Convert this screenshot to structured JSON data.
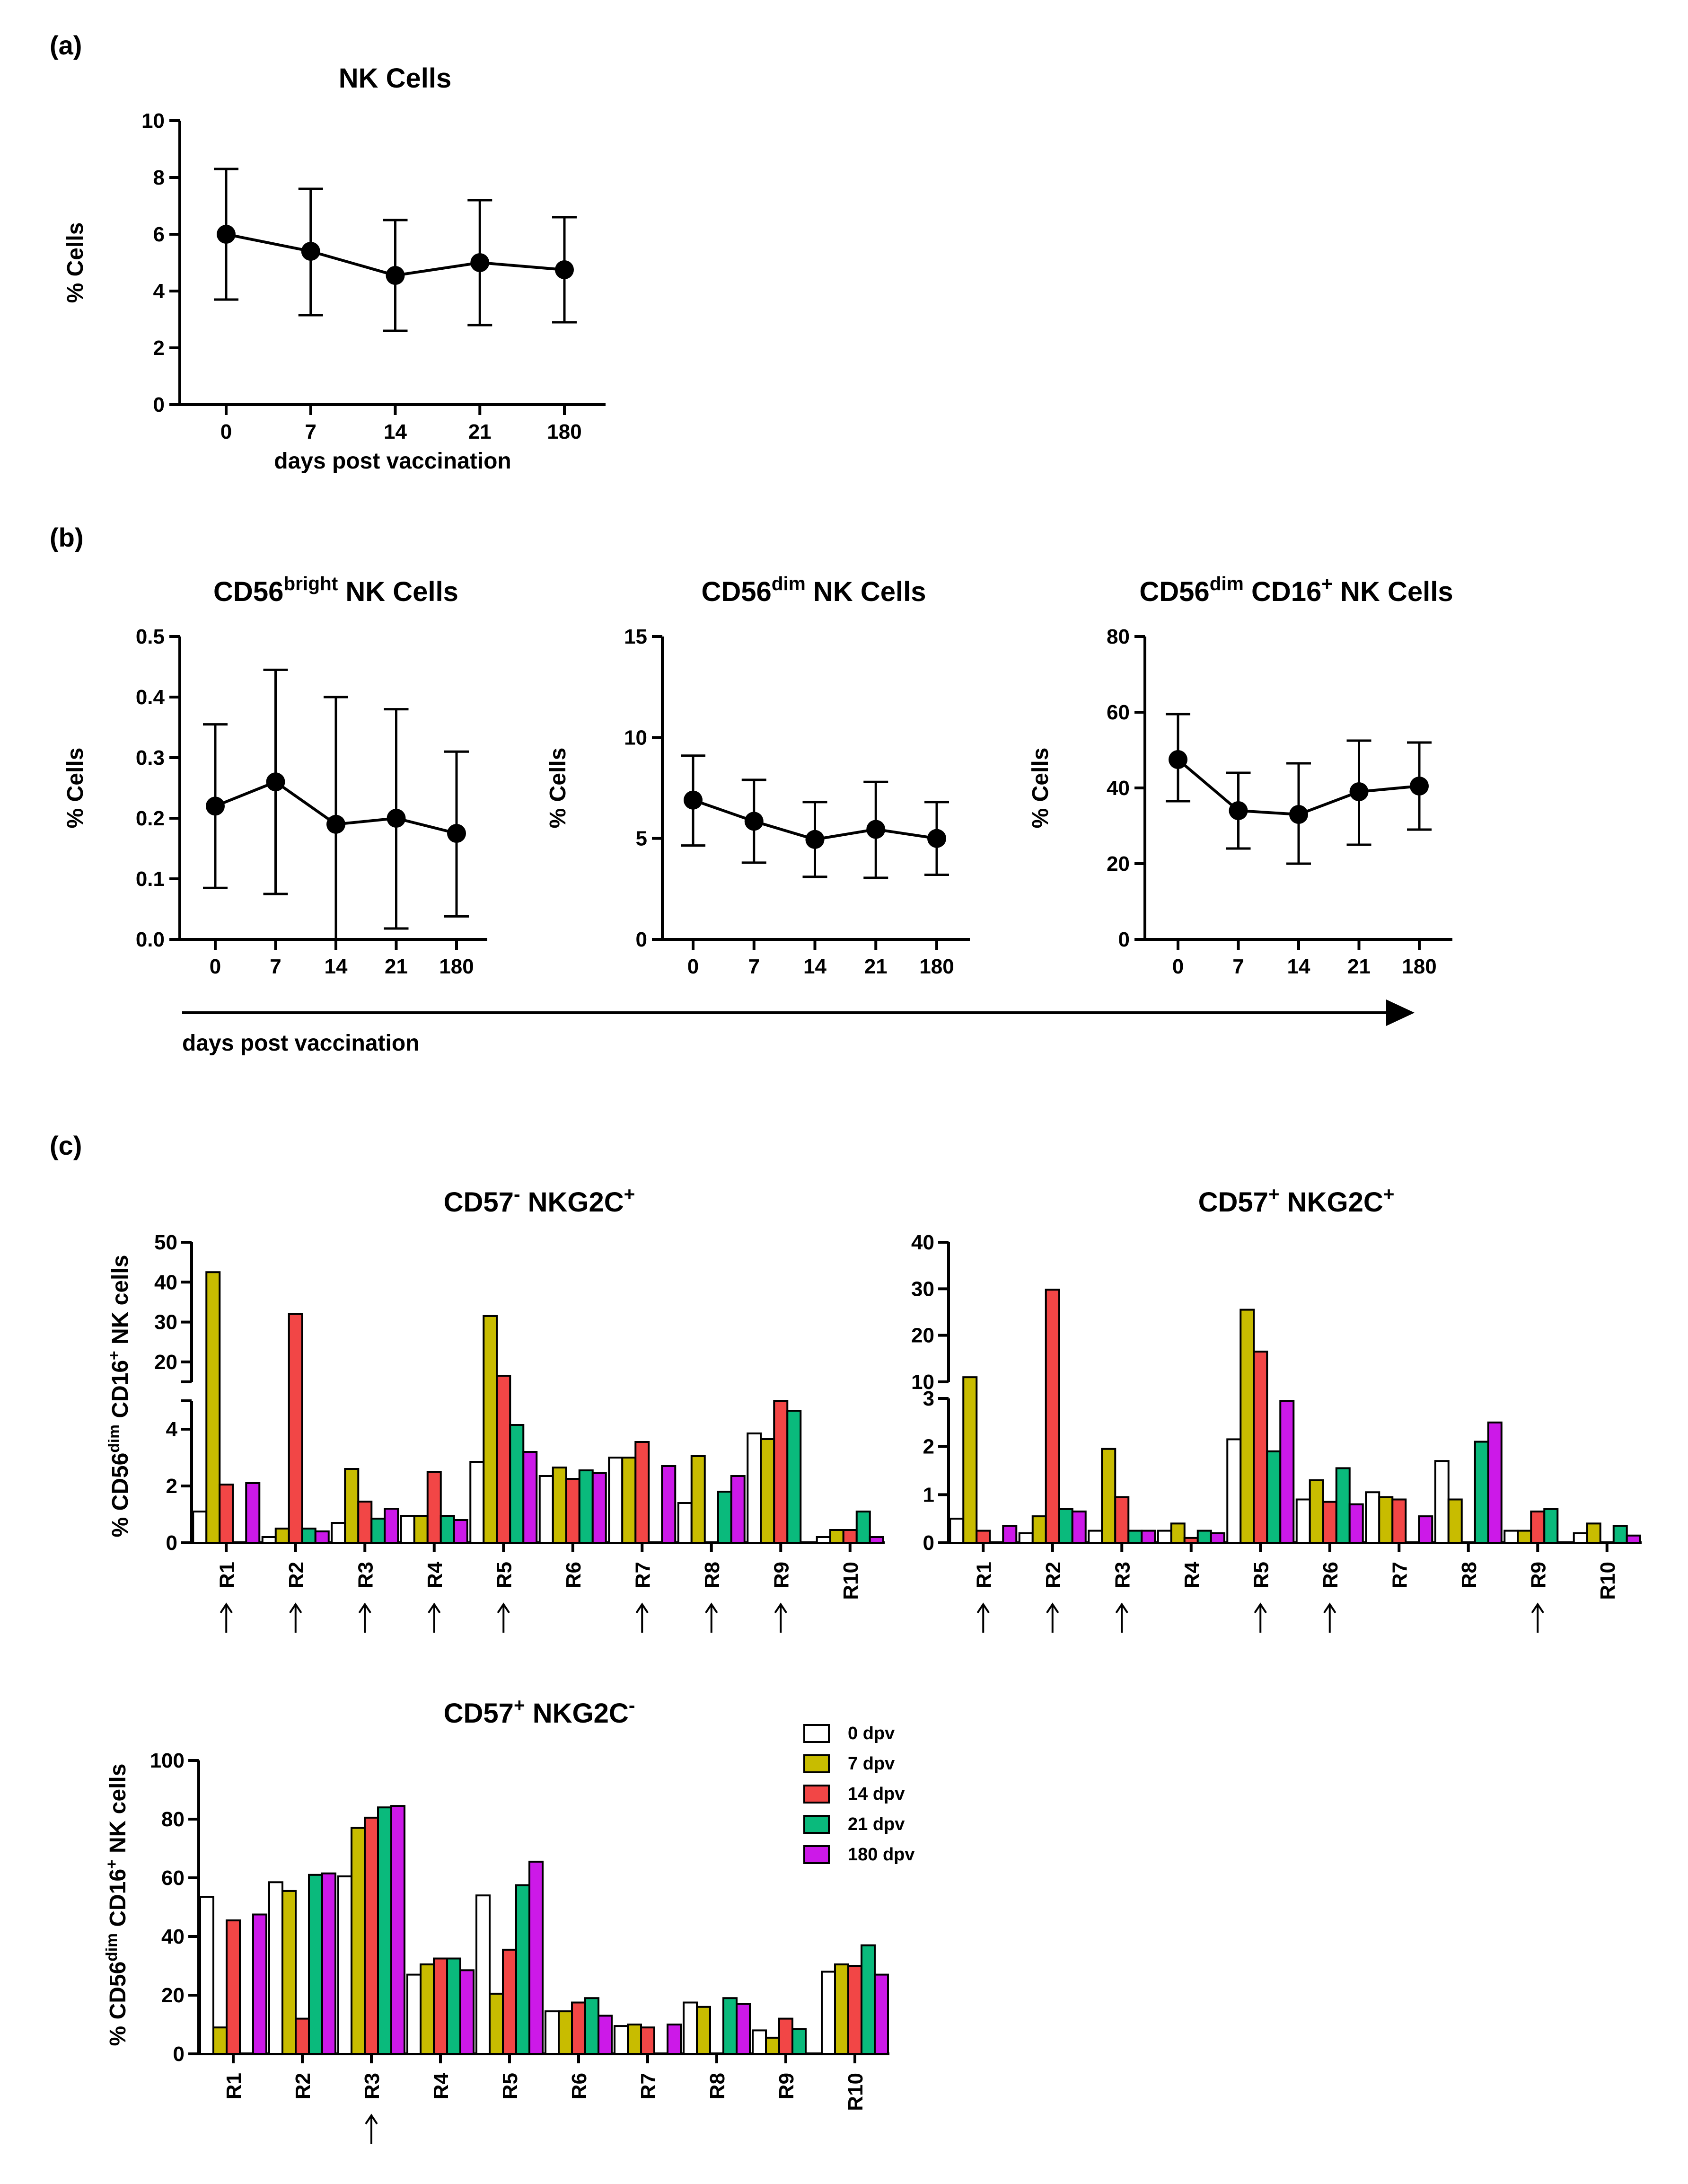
{
  "panel_labels": [
    "(a)",
    "(b)",
    "(c)"
  ],
  "colors": {
    "0 dpv": "#ffffff",
    "7 dpv": "#c8bc00",
    "14 dpv": "#f24646",
    "21 dpv": "#0aba7c",
    "180 dpv": "#cc19e8",
    "axis": "#000000"
  },
  "shared_xlabel": "days post vaccination",
  "chart_data": [
    {
      "id": "nk",
      "type": "line",
      "title": "NK Cells",
      "categories": [
        "0",
        "7",
        "14",
        "21",
        "180"
      ],
      "values": [
        6.0,
        5.4,
        4.55,
        5.0,
        4.75
      ],
      "err_high": [
        8.3,
        7.6,
        6.5,
        7.2,
        6.6
      ],
      "err_low": [
        3.7,
        3.15,
        2.6,
        2.8,
        2.9
      ],
      "ylim": [
        0,
        10
      ],
      "yticks": [
        "0",
        "2",
        "4",
        "6",
        "8",
        "10"
      ],
      "ylabel": "% Cells",
      "xlabel": "days post vaccination"
    },
    {
      "id": "bright",
      "type": "line",
      "title": "CD56",
      "title_sup": "bright",
      "title_rest": " NK Cells",
      "categories": [
        "0",
        "7",
        "14",
        "21",
        "180"
      ],
      "values": [
        0.22,
        0.26,
        0.19,
        0.2,
        0.175
      ],
      "err_high": [
        0.355,
        0.445,
        0.4,
        0.38,
        0.31
      ],
      "err_low": [
        0.085,
        0.075,
        0.0,
        0.018,
        0.038
      ],
      "ylim": [
        0,
        0.5
      ],
      "yticks": [
        "0.0",
        "0.1",
        "0.2",
        "0.3",
        "0.4",
        "0.5"
      ],
      "ylabel": "% Cells"
    },
    {
      "id": "dim",
      "type": "line",
      "title": "CD56",
      "title_sup": "dim",
      "title_rest": " NK Cells",
      "categories": [
        "0",
        "7",
        "14",
        "21",
        "180"
      ],
      "values": [
        6.9,
        5.85,
        4.95,
        5.45,
        5.0
      ],
      "err_high": [
        9.1,
        7.9,
        6.8,
        7.8,
        6.8
      ],
      "err_low": [
        4.65,
        3.8,
        3.1,
        3.05,
        3.2
      ],
      "ylim": [
        0,
        15
      ],
      "yticks": [
        "0",
        "5",
        "10",
        "15"
      ],
      "ylabel": "% Cells"
    },
    {
      "id": "cd16",
      "type": "line",
      "title": "CD56",
      "title_sup": "dim",
      "title_mid": " CD16",
      "title_sup2": "+",
      "title_rest": " NK Cells",
      "categories": [
        "0",
        "7",
        "14",
        "21",
        "180"
      ],
      "values": [
        47.5,
        34.0,
        33.0,
        39.0,
        40.5
      ],
      "err_high": [
        59.5,
        44.0,
        46.5,
        52.5,
        52.0
      ],
      "err_low": [
        36.5,
        24.0,
        20.0,
        25.0,
        29.0
      ],
      "ylim": [
        0,
        80
      ],
      "yticks": [
        "0",
        "20",
        "40",
        "60",
        "80"
      ],
      "ylabel": "% Cells"
    },
    {
      "id": "c1",
      "type": "bar",
      "title": "CD57",
      "title_sup": "-",
      "title_rest": " NKG2C",
      "title_sup2": "+",
      "ylabel": "% CD56dim CD16+ NK cells",
      "categories": [
        "R1",
        "R2",
        "R3",
        "R4",
        "R5",
        "R6",
        "R7",
        "R8",
        "R9",
        "R10"
      ],
      "arrows": [
        true,
        true,
        true,
        true,
        true,
        false,
        true,
        true,
        true,
        false
      ],
      "axis_break": {
        "lower": [
          0,
          5
        ],
        "upper": [
          15,
          50
        ]
      },
      "yticks_lower": [
        "0",
        "2",
        "4"
      ],
      "yticks_upper": [
        "20",
        "30",
        "40",
        "50"
      ],
      "series": [
        {
          "name": "0 dpv",
          "values": [
            1.1,
            0.2,
            0.7,
            0.95,
            2.85,
            2.35,
            3.0,
            1.4,
            3.85,
            0.2
          ]
        },
        {
          "name": "7 dpv",
          "values": [
            42.5,
            0.5,
            2.6,
            0.95,
            31.5,
            2.65,
            3.0,
            3.05,
            3.65,
            0.45
          ]
        },
        {
          "name": "14 dpv",
          "values": [
            2.05,
            32.0,
            1.45,
            2.5,
            16.5,
            2.25,
            3.55,
            null,
            5.0,
            0.45
          ]
        },
        {
          "name": "21 dpv",
          "values": [
            null,
            0.5,
            0.85,
            0.95,
            4.15,
            2.55,
            null,
            1.8,
            4.65,
            1.1
          ]
        },
        {
          "name": "180 dpv",
          "values": [
            2.1,
            0.4,
            1.2,
            0.8,
            3.2,
            2.45,
            2.7,
            2.35,
            null,
            0.2
          ]
        }
      ]
    },
    {
      "id": "c2",
      "type": "bar",
      "title": "CD57",
      "title_sup": "+",
      "title_rest": " NKG2C",
      "title_sup2": "+",
      "categories": [
        "R1",
        "R2",
        "R3",
        "R4",
        "R5",
        "R6",
        "R7",
        "R8",
        "R9",
        "R10"
      ],
      "arrows": [
        true,
        true,
        true,
        false,
        true,
        true,
        false,
        false,
        true,
        false
      ],
      "axis_break": {
        "lower": [
          0,
          3
        ],
        "upper": [
          10,
          40
        ]
      },
      "yticks_lower": [
        "0",
        "1",
        "2",
        "3"
      ],
      "yticks_upper": [
        "10",
        "20",
        "30",
        "40"
      ],
      "series": [
        {
          "name": "0 dpv",
          "values": [
            0.5,
            0.2,
            0.25,
            0.25,
            2.15,
            0.9,
            1.05,
            1.7,
            0.25,
            0.2
          ]
        },
        {
          "name": "7 dpv",
          "values": [
            11.0,
            0.55,
            1.95,
            0.4,
            25.5,
            1.3,
            0.95,
            0.9,
            0.25,
            0.4
          ]
        },
        {
          "name": "14 dpv",
          "values": [
            0.25,
            29.8,
            0.95,
            0.1,
            16.5,
            0.85,
            0.9,
            null,
            0.65,
            null
          ]
        },
        {
          "name": "21 dpv",
          "values": [
            null,
            0.7,
            0.25,
            0.25,
            1.9,
            1.55,
            null,
            2.1,
            0.7,
            0.35
          ]
        },
        {
          "name": "180 dpv",
          "values": [
            0.35,
            0.65,
            0.25,
            0.2,
            2.95,
            0.8,
            0.55,
            2.5,
            null,
            0.15
          ]
        }
      ]
    },
    {
      "id": "c3",
      "type": "bar",
      "title": "CD57",
      "title_sup": "+",
      "title_rest": " NKG2C",
      "title_sup2": "-",
      "ylabel": "% CD56dim CD16+ NK cells",
      "categories": [
        "R1",
        "R2",
        "R3",
        "R4",
        "R5",
        "R6",
        "R7",
        "R8",
        "R9",
        "R10"
      ],
      "arrows": [
        false,
        false,
        true,
        false,
        false,
        false,
        false,
        false,
        false,
        false
      ],
      "ylim": [
        0,
        100
      ],
      "yticks": [
        "0",
        "20",
        "40",
        "60",
        "80",
        "100"
      ],
      "legend": [
        "0 dpv",
        "7 dpv",
        "14 dpv",
        "21 dpv",
        "180 dpv"
      ],
      "series": [
        {
          "name": "0 dpv",
          "values": [
            53.5,
            58.5,
            60.5,
            27.0,
            54.0,
            14.5,
            9.5,
            17.5,
            8.0,
            28.0
          ]
        },
        {
          "name": "7 dpv",
          "values": [
            9.0,
            55.5,
            77.0,
            30.5,
            20.5,
            14.5,
            10.0,
            16.0,
            5.5,
            30.5
          ]
        },
        {
          "name": "14 dpv",
          "values": [
            45.5,
            12.0,
            80.5,
            32.5,
            35.5,
            17.5,
            9.0,
            null,
            12.0,
            30.0
          ]
        },
        {
          "name": "21 dpv",
          "values": [
            null,
            61.0,
            84.0,
            32.5,
            57.5,
            19.0,
            null,
            19.0,
            8.5,
            37.0
          ]
        },
        {
          "name": "180 dpv",
          "values": [
            47.5,
            61.5,
            84.5,
            28.5,
            65.5,
            13.0,
            10.0,
            17.0,
            null,
            27.0
          ]
        }
      ]
    }
  ]
}
